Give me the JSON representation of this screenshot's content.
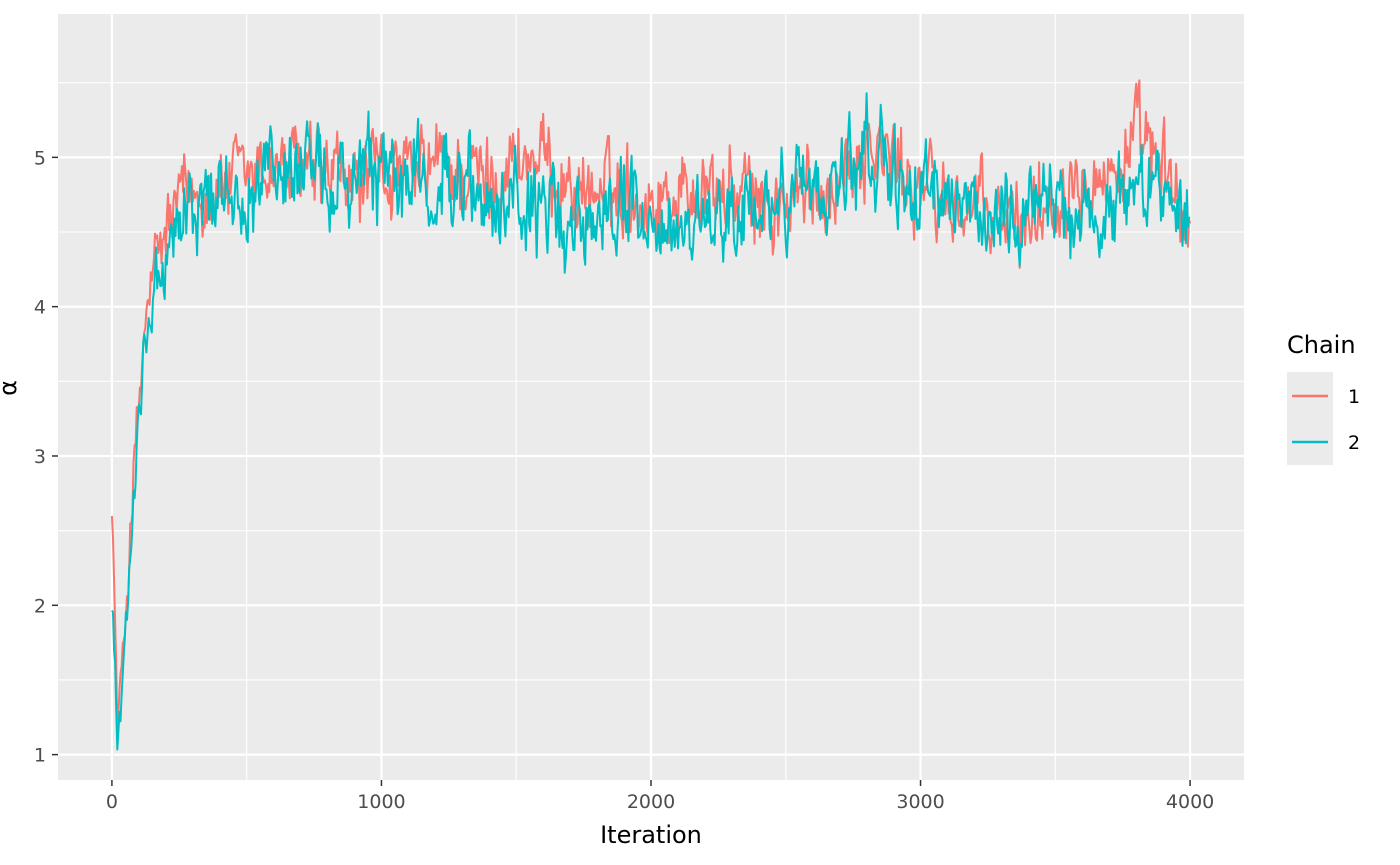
{
  "chart_data": {
    "type": "line",
    "title": "",
    "xlabel": "Iteration",
    "ylabel": "α",
    "xlim": [
      -200,
      4200
    ],
    "ylim": [
      0.83,
      5.96
    ],
    "x_ticks": [
      0,
      1000,
      2000,
      3000,
      4000
    ],
    "y_ticks": [
      1,
      2,
      3,
      4,
      5
    ],
    "grid": true,
    "legend": {
      "title": "Chain",
      "position": "right"
    },
    "series": [
      {
        "name": "1",
        "color": "#F8766D",
        "x": [
          0,
          20,
          40,
          60,
          80,
          100,
          125,
          150,
          175,
          200,
          250,
          300,
          350,
          400,
          500,
          600,
          700,
          800,
          900,
          1000,
          1100,
          1200,
          1300,
          1400,
          1500,
          1600,
          1700,
          1800,
          1900,
          2000,
          2100,
          2200,
          2300,
          2400,
          2500,
          2600,
          2700,
          2800,
          2900,
          3000,
          3100,
          3200,
          3300,
          3400,
          3500,
          3600,
          3700,
          3800,
          3900,
          4000
        ],
        "y": [
          2.8,
          1.2,
          1.6,
          2.2,
          2.9,
          3.3,
          3.9,
          4.2,
          4.3,
          4.5,
          4.7,
          4.75,
          4.8,
          4.8,
          4.85,
          4.95,
          4.9,
          4.85,
          4.8,
          4.9,
          4.85,
          4.95,
          4.9,
          4.85,
          5.0,
          4.95,
          4.8,
          4.75,
          4.8,
          4.7,
          4.75,
          4.8,
          4.75,
          4.7,
          4.65,
          4.75,
          4.9,
          5.1,
          4.95,
          4.8,
          4.7,
          4.65,
          4.55,
          4.6,
          4.75,
          5.0,
          4.85,
          5.1,
          4.9,
          4.5
        ]
      },
      {
        "name": "2",
        "color": "#00BFC4",
        "x": [
          0,
          20,
          40,
          60,
          80,
          100,
          125,
          150,
          175,
          200,
          250,
          300,
          350,
          400,
          500,
          600,
          700,
          800,
          900,
          1000,
          1100,
          1200,
          1300,
          1400,
          1500,
          1600,
          1700,
          1800,
          1900,
          2000,
          2100,
          2200,
          2300,
          2400,
          2500,
          2600,
          2700,
          2800,
          2900,
          3000,
          3100,
          3200,
          3300,
          3400,
          3500,
          3600,
          3700,
          3800,
          3900,
          4000
        ],
        "y": [
          2.1,
          1.1,
          1.4,
          2.0,
          2.8,
          3.4,
          3.8,
          4.1,
          4.2,
          4.35,
          4.55,
          4.65,
          4.7,
          4.75,
          4.8,
          4.9,
          4.85,
          4.8,
          4.8,
          4.85,
          4.8,
          4.9,
          4.75,
          4.7,
          4.75,
          4.6,
          4.55,
          4.65,
          4.7,
          4.6,
          4.45,
          4.5,
          4.6,
          4.65,
          4.75,
          4.8,
          4.9,
          5.0,
          4.85,
          4.75,
          4.7,
          4.6,
          4.65,
          4.7,
          4.75,
          4.65,
          4.6,
          4.85,
          4.9,
          4.7
        ]
      }
    ]
  }
}
